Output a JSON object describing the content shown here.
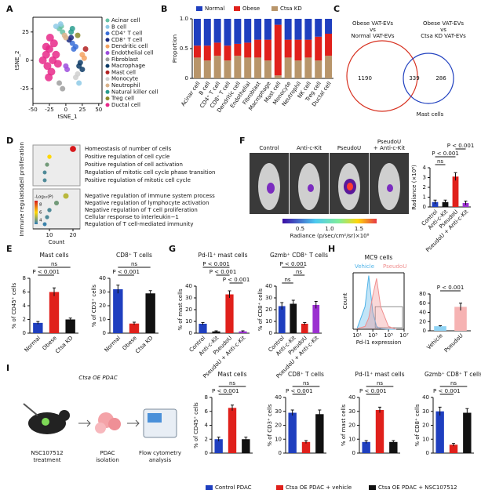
{
  "panel_labels": [
    "A",
    "B",
    "C",
    "D",
    "E",
    "F",
    "G",
    "H",
    "I"
  ],
  "venn": {
    "left_title": [
      "Obese VAT-EVs",
      "vs",
      "Normal VAT-EVs"
    ],
    "right_title": [
      "Obese VAT-EVs",
      "vs",
      "Ctsa KD VAT-EVs"
    ],
    "counts": [
      1190,
      339,
      286
    ],
    "caption": "Mast cells"
  },
  "f_images": {
    "labels": [
      [
        "Control"
      ],
      [
        "Anti-c-Kit"
      ],
      [
        "PseudoU"
      ],
      [
        "PseudoU",
        "+ Anti-c-Kit"
      ]
    ],
    "colorbar": {
      "lim": [
        0.2,
        1.8
      ],
      "ticks": [
        0.5,
        {
          "value": 1,
          "label": "1.0"
        },
        1.5
      ],
      "label": "Radiance (p/sec/cm²/sr)×10⁸"
    }
  },
  "i_diagram": {
    "title": "Ctsa OE PDAC",
    "steps": [
      [
        "NSC107512",
        "treatment"
      ],
      [
        "PDAC",
        "isolation"
      ],
      [
        "Flow cytometry",
        "analysis"
      ]
    ]
  },
  "i_legend": {
    "names": [
      "Control PDAC",
      "Ctsa OE PDAC + vehicle",
      "Ctsa OE PDAC + NSC107512"
    ],
    "colors": [
      "#1f3fbf",
      "#e0201b",
      "#111111"
    ]
  },
  "chart_data": [
    {
      "type": "scatter",
      "xlabel": "tSNE_1",
      "ylabel": "tSNE_2",
      "xlim": [
        -50,
        55
      ],
      "xticks": [
        -50,
        -25,
        0,
        25,
        50
      ],
      "ylim": [
        -38,
        38
      ],
      "yticks": [
        -25,
        0,
        25
      ],
      "series": [
        {
          "name": "Acinar cell",
          "color": "#66c2a5",
          "x": [
            -10,
            -5,
            -7
          ],
          "y": [
            28,
            25,
            30
          ]
        },
        {
          "name": "B cell",
          "color": "#8ecae6",
          "x": [
            -15,
            -8,
            20
          ],
          "y": [
            30,
            32,
            -20
          ]
        },
        {
          "name": "CD4⁺ T cell",
          "color": "#3a6fd8",
          "x": [
            10,
            12,
            15
          ],
          "y": [
            15,
            10,
            12
          ]
        },
        {
          "name": "CD8⁺ T cell",
          "color": "#1b2a80",
          "x": [
            5,
            8
          ],
          "y": [
            18,
            20
          ]
        },
        {
          "name": "Dendritic cell",
          "color": "#f4a261",
          "x": [
            25,
            28
          ],
          "y": [
            5,
            2
          ]
        },
        {
          "name": "Endothelial cell",
          "color": "#9d4edd",
          "x": [
            0,
            2
          ],
          "y": [
            -5,
            -8
          ]
        },
        {
          "name": "Fibroblast",
          "color": "#9e9e9e",
          "x": [
            -10,
            -5
          ],
          "y": [
            -20,
            -25
          ]
        },
        {
          "name": "Macrophage",
          "color": "#0d3b66",
          "x": [
            20,
            25,
            22
          ],
          "y": [
            -5,
            -8,
            -2
          ]
        },
        {
          "name": "Mast cell",
          "color": "#b22222",
          "x": [
            30
          ],
          "y": [
            10
          ]
        },
        {
          "name": "Monocyte",
          "color": "#cfcfcf",
          "x": [
            15,
            18
          ],
          "y": [
            -15,
            -12
          ]
        },
        {
          "name": "Neutrophil",
          "color": "#d9b38c",
          "x": [
            0,
            -2
          ],
          "y": [
            20,
            22
          ]
        },
        {
          "name": "Natural killer cell",
          "color": "#2a9d8f",
          "x": [
            8,
            10
          ],
          "y": [
            25,
            28
          ]
        },
        {
          "name": "Treg cell",
          "color": "#8a8a2a",
          "x": [
            18
          ],
          "y": [
            22
          ]
        },
        {
          "name": "Ductal cell",
          "color": "#e7298a",
          "x": [
            -30,
            -25,
            -20,
            -15,
            -28,
            -22,
            -18,
            -24,
            -12,
            -30,
            -35,
            -26
          ],
          "y": [
            5,
            10,
            0,
            5,
            -5,
            -10,
            15,
            20,
            -3,
            12,
            0,
            -15
          ]
        }
      ]
    },
    {
      "type": "stacked_bar",
      "ylabel": "Proportion",
      "ylim": [
        0,
        1
      ],
      "yticks": [
        0,
        0.5,
        {
          "value": 1,
          "label": "1.0"
        }
      ],
      "categories": [
        "Acinar cell",
        "B cell",
        "CD4⁺ T cell",
        "CD8⁺ T cell",
        "Dendritic cell",
        "Endothelial",
        "Fibroblast",
        "Macrophage",
        "Mast cell",
        "Monocyte",
        "Neutrophil",
        "NK cell",
        "Treg cell",
        "Ductal cell"
      ],
      "series": [
        {
          "name": "Normal",
          "color": "#1f3fbf",
          "values": [
            0.45,
            0.45,
            0.4,
            0.45,
            0.42,
            0.4,
            0.35,
            0.35,
            0.1,
            0.35,
            0.35,
            0.35,
            0.3,
            0.25
          ]
        },
        {
          "name": "Obese",
          "color": "#e0201b",
          "values": [
            0.2,
            0.25,
            0.22,
            0.25,
            0.2,
            0.25,
            0.3,
            0.35,
            0.85,
            0.3,
            0.35,
            0.3,
            0.4,
            0.37
          ]
        },
        {
          "name": "Ctsa KD",
          "color": "#b8956a",
          "values": [
            0.35,
            0.3,
            0.38,
            0.3,
            0.38,
            0.35,
            0.35,
            0.3,
            0.05,
            0.35,
            0.3,
            0.35,
            0.3,
            0.38
          ]
        }
      ]
    },
    {
      "type": "dot",
      "groups": [
        "Cell proliferation",
        "Immune regulation"
      ],
      "categories": [
        "Homeostasis of number of cells",
        "Positive regulation of cell cycle",
        "Positive regulation of cell activation",
        "Regulation of mitotic cell cycle phase transition",
        "Positive regulation of mitotic cell cycle",
        "Negative regulation of immune system process",
        "Negative regulation of lymphocyte activation",
        "Negative regulation of T cell proliferation",
        "Cellular response to interleukin−1",
        "Regulation of T cell-mediated immunity"
      ],
      "values": [
        20,
        10,
        9,
        8,
        8,
        17,
        13,
        10,
        9,
        8
      ],
      "log_p": [
        9,
        6,
        4,
        3.5,
        3.5,
        5,
        4,
        3.5,
        3.5,
        3.2
      ],
      "xlabel": "Count",
      "xlim": [
        3,
        23
      ],
      "xticks": [
        10,
        20
      ],
      "color_label": "-Log₁₀(P)",
      "clim": [
        3,
        9
      ],
      "cticks": [
        4,
        6,
        8
      ]
    },
    {
      "type": "bar",
      "ylabel": "Radiance (×10⁸)",
      "ylim": [
        0,
        4
      ],
      "yticks": [
        0,
        1,
        2,
        3,
        4
      ],
      "categories": [
        "Control",
        "Anti-c-Kit",
        "PseudoU",
        "PseudoU + Anti-c-Kit"
      ],
      "values": [
        0.5,
        0.5,
        3.1,
        0.4
      ],
      "errors": [
        0.2,
        0.2,
        0.4,
        0.2
      ],
      "colors": [
        "#1f3fbf",
        "#111111",
        "#e0201b",
        "#9b30d0"
      ],
      "annotations": [
        "ns",
        "P < 0.001",
        "P < 0.001"
      ]
    },
    {
      "type": "bar",
      "title": "Mast cells",
      "ylabel": "% of CD45⁺ cells",
      "ylim": [
        0,
        8
      ],
      "yticks": [
        0,
        2,
        4,
        6,
        8
      ],
      "categories": [
        "Normal",
        "Obese",
        "Ctsa KD"
      ],
      "values": [
        1.5,
        6,
        2
      ],
      "errors": [
        0.2,
        0.6,
        0.2
      ],
      "colors": [
        "#1f3fbf",
        "#e0201b",
        "#111111"
      ],
      "annotations": [
        "ns",
        "P < 0.001"
      ]
    },
    {
      "type": "bar",
      "title": "CD8⁺ T cells",
      "ylabel": "% of CD3⁺ cells",
      "ylim": [
        0,
        40
      ],
      "yticks": [
        0,
        10,
        20,
        30,
        40
      ],
      "categories": [
        "Normal",
        "Obese",
        "Ctsa KD"
      ],
      "values": [
        32,
        7,
        29
      ],
      "errors": [
        3,
        1,
        2
      ],
      "colors": [
        "#1f3fbf",
        "#e0201b",
        "#111111"
      ],
      "annotations": [
        "ns",
        "P < 0.001"
      ]
    },
    {
      "type": "bar",
      "title": "Pd-l1⁺ mast cells",
      "ylabel": "% of mast cells",
      "ylim": [
        0,
        40
      ],
      "yticks": [
        0,
        10,
        20,
        30,
        40
      ],
      "categories": [
        "Control",
        "Anti-c-Kit",
        "PseudoU",
        "PseudoU + Anti-c-Kit"
      ],
      "values": [
        8,
        1.5,
        33,
        1.5
      ],
      "errors": [
        1,
        0.5,
        3,
        0.5
      ],
      "colors": [
        "#1f3fbf",
        "#111111",
        "#e0201b",
        "#9b30d0"
      ],
      "annotations": [
        "P < 0.001",
        "P < 0.001",
        "P < 0.001"
      ]
    },
    {
      "type": "bar",
      "title": "Gzmb⁺ CD8⁺ T cells",
      "ylabel": "% of CD8⁺ cells",
      "ylim": [
        0,
        40
      ],
      "yticks": [
        0,
        10,
        20,
        30,
        40
      ],
      "categories": [
        "Control",
        "Anti-c-Kit",
        "PseudoU",
        "PseudoU + Anti-c-Kit"
      ],
      "values": [
        23,
        25,
        8,
        24
      ],
      "errors": [
        3,
        3,
        1,
        3
      ],
      "colors": [
        "#1f3fbf",
        "#111111",
        "#e0201b",
        "#9b30d0"
      ],
      "annotations": [
        "ns",
        "ns",
        "P < 0.001"
      ]
    },
    {
      "type": "line",
      "title": "MC9 cells",
      "xlabel": "Pd-l1 expression",
      "ylabel": "Count",
      "xlog": true,
      "xlim": [
        3,
        10000000
      ],
      "xticks": [
        {
          "value": 10,
          "label": "10¹"
        },
        {
          "value": 1000,
          "label": "10³"
        },
        {
          "value": 100000,
          "label": "10⁵"
        },
        {
          "value": 10000000,
          "label": "10⁷"
        }
      ],
      "ylim": [
        0,
        100
      ],
      "x": [
        10,
        100,
        300,
        1000,
        3000,
        10000,
        100000,
        1000000
      ],
      "series": [
        {
          "name": "Vehicle",
          "color": "#4fb3e8",
          "values": [
            2,
            40,
            95,
            30,
            5,
            1,
            0,
            0
          ]
        },
        {
          "name": "PseudoU",
          "color": "#f08f8f",
          "values": [
            1,
            5,
            20,
            60,
            90,
            40,
            5,
            0
          ]
        }
      ]
    },
    {
      "type": "bar",
      "ylim": [
        0,
        80
      ],
      "yticks": [
        0,
        20,
        40,
        60,
        80
      ],
      "categories": [
        "Vehicle",
        "PseudoU"
      ],
      "values": [
        10,
        52
      ],
      "errors": [
        1,
        8
      ],
      "colors": [
        "#8fd3f4",
        "#f6b3b3"
      ],
      "annotations": [
        "P < 0.001"
      ]
    },
    {
      "type": "bar",
      "title": "Mast cells",
      "ylabel": "% of CD45⁺ cells",
      "ylim": [
        0,
        8
      ],
      "yticks": [
        0,
        2,
        4,
        6,
        8
      ],
      "values": [
        2,
        6.5,
        2
      ],
      "errors": [
        0.3,
        0.4,
        0.3
      ],
      "colors": [
        "#1f3fbf",
        "#e0201b",
        "#111111"
      ],
      "annotations": [
        "ns",
        "P < 0.001"
      ]
    },
    {
      "type": "bar",
      "title": "CD8⁺ T cells",
      "ylabel": "% of CD3⁺ cells",
      "ylim": [
        0,
        40
      ],
      "yticks": [
        0,
        10,
        20,
        30,
        40
      ],
      "values": [
        29,
        8,
        28
      ],
      "errors": [
        2,
        1,
        3
      ],
      "colors": [
        "#1f3fbf",
        "#e0201b",
        "#111111"
      ],
      "annotations": [
        "ns",
        "P < 0.001"
      ]
    },
    {
      "type": "bar",
      "title": "Pd-l1⁺ mast cells",
      "ylabel": "% of mast cells",
      "ylim": [
        0,
        40
      ],
      "yticks": [
        0,
        10,
        20,
        30,
        40
      ],
      "values": [
        8,
        31,
        8
      ],
      "errors": [
        1,
        2,
        1
      ],
      "colors": [
        "#1f3fbf",
        "#e0201b",
        "#111111"
      ],
      "annotations": [
        "ns",
        "P < 0.001"
      ]
    },
    {
      "type": "bar",
      "title": "Gzmb⁺ CD8⁺ T cells",
      "ylabel": "% of CD8⁺ cells",
      "ylim": [
        0,
        40
      ],
      "yticks": [
        0,
        10,
        20,
        30,
        40
      ],
      "values": [
        30,
        6,
        29
      ],
      "errors": [
        3,
        1,
        3
      ],
      "colors": [
        "#1f3fbf",
        "#e0201b",
        "#111111"
      ],
      "annotations": [
        "ns",
        "P < 0.001"
      ]
    }
  ]
}
